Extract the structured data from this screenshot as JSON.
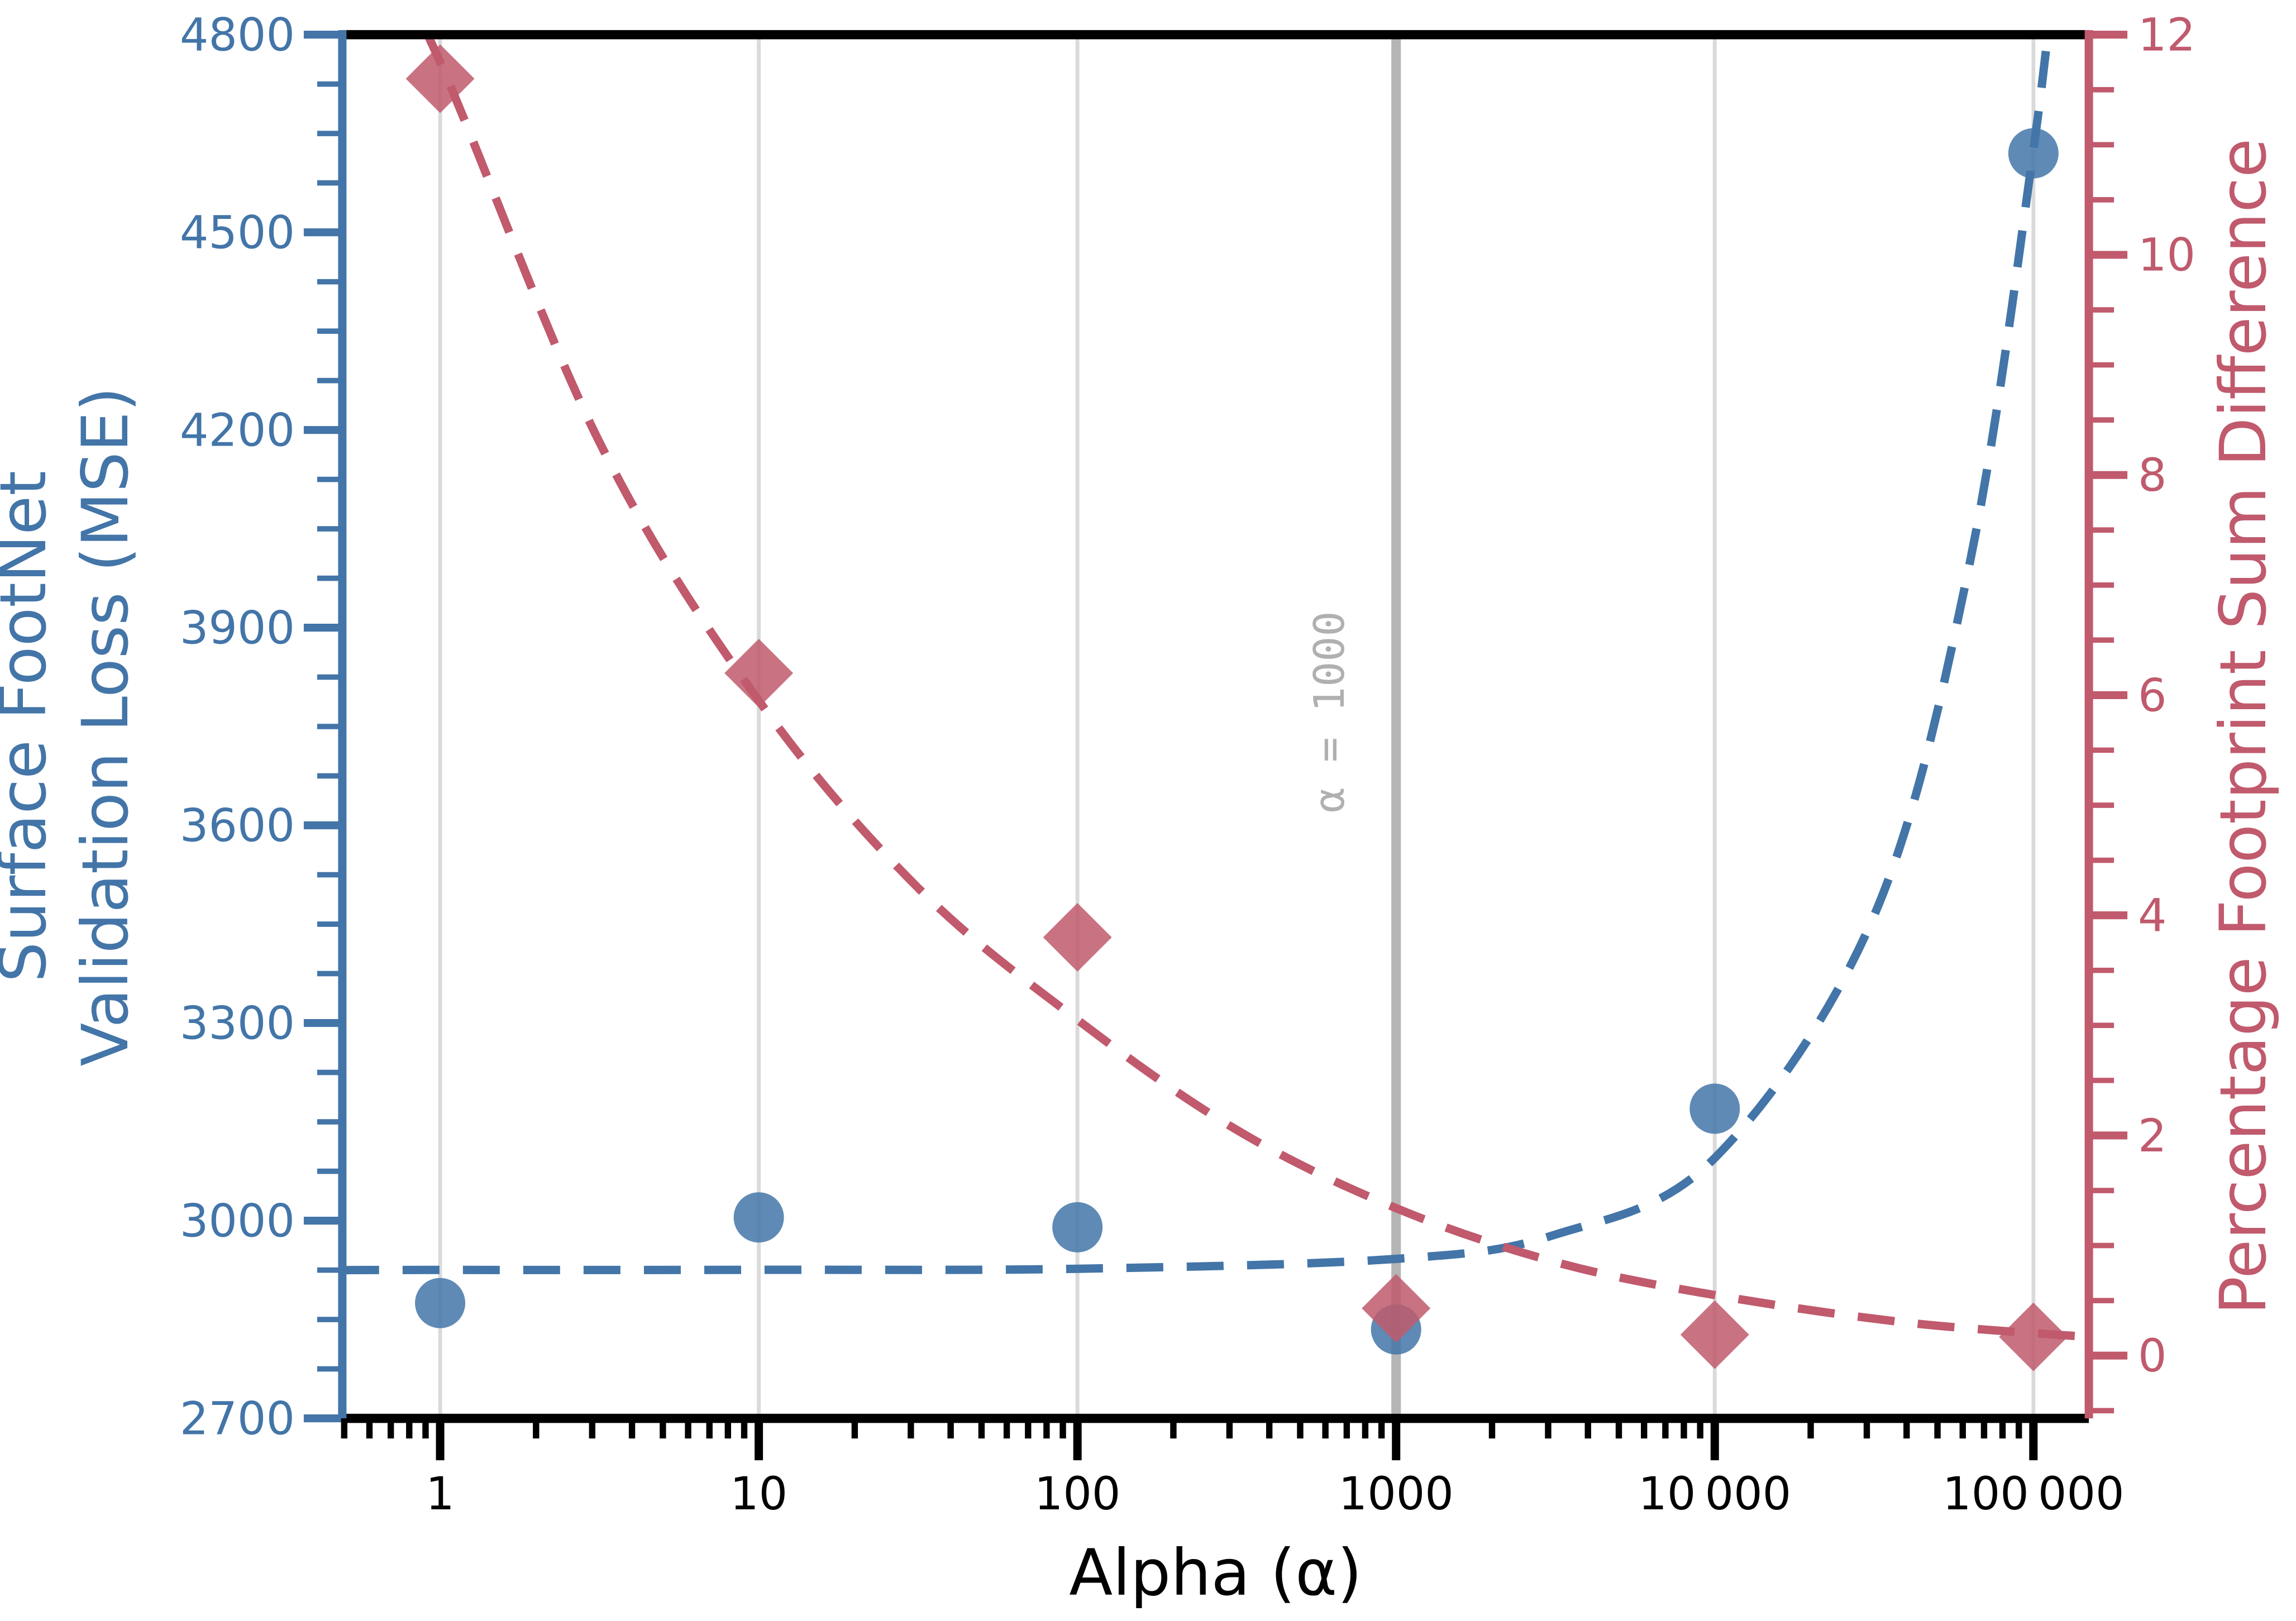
{
  "chart_data": {
    "type": "scatter",
    "title": "",
    "xlabel": "Alpha (α)",
    "x_axis": {
      "scale": "log",
      "log_range": [
        -0.307,
        5.174
      ],
      "major_ticks": [
        {
          "v": 1,
          "label": "1"
        },
        {
          "v": 10,
          "label": "10"
        },
        {
          "v": 100,
          "label": "100"
        },
        {
          "v": 1000,
          "label": "1000"
        },
        {
          "v": 10000,
          "label": "10 000"
        },
        {
          "v": 100000,
          "label": "100 000"
        }
      ],
      "gridline_decades": [
        1,
        10,
        100,
        1000,
        10000,
        100000
      ]
    },
    "left_axis": {
      "label_line1": "Surface FootNet",
      "label_line2": "Validation Loss (MSE)",
      "range": [
        2700,
        4800
      ],
      "major_step": 300,
      "minor_step": 75,
      "tick_labels": [
        "2700",
        "3000",
        "3300",
        "3600",
        "3900",
        "4200",
        "4500",
        "4800"
      ]
    },
    "right_axis": {
      "label": "Percentage Footprint Sum Difference",
      "range": [
        -0.57,
        12
      ],
      "major_step": 2,
      "minor_step": 0.5,
      "tick_labels": [
        "0",
        "2",
        "4",
        "6",
        "8",
        "10",
        "12"
      ]
    },
    "series": [
      {
        "name": "surface-footnet-validation-loss",
        "axis": "left",
        "marker": "circle",
        "points": [
          [
            1,
            2875
          ],
          [
            10,
            3005
          ],
          [
            100,
            2990
          ],
          [
            1000,
            2835
          ],
          [
            10000,
            3170
          ],
          [
            100000,
            4620
          ]
        ]
      },
      {
        "name": "percentage-footprint-sum-difference",
        "axis": "right",
        "marker": "diamond",
        "points": [
          [
            1,
            11.6
          ],
          [
            10,
            6.2
          ],
          [
            100,
            3.8
          ],
          [
            1000,
            0.43
          ],
          [
            10000,
            0.19
          ],
          [
            100000,
            0.17
          ]
        ]
      }
    ],
    "fits": [
      {
        "name": "loss-fit",
        "axis": "left",
        "samples": [
          [
            0.493,
            2925
          ],
          [
            1,
            2925.2
          ],
          [
            10,
            2925.4
          ],
          [
            100,
            2927
          ],
          [
            1000,
            2942
          ],
          [
            3162,
            2979
          ],
          [
            10000,
            3095
          ],
          [
            31623,
            3463
          ],
          [
            63096,
            3998
          ],
          [
            100000,
            4625
          ],
          [
            120000,
            4965
          ]
        ]
      },
      {
        "name": "pct-difference-fit",
        "axis": "right",
        "samples": [
          [
            0.6,
            13
          ],
          [
            1,
            11.75
          ],
          [
            3.16,
            8.3
          ],
          [
            10,
            5.95
          ],
          [
            31.6,
            4.25
          ],
          [
            100,
            3.05
          ],
          [
            316,
            2.05
          ],
          [
            1000,
            1.34
          ],
          [
            3162,
            0.85
          ],
          [
            10000,
            0.55
          ],
          [
            40000,
            0.3
          ],
          [
            148000,
            0.17
          ]
        ]
      }
    ],
    "annotation": {
      "text": "α = 1000",
      "x": 1000
    },
    "colors": {
      "blue": "#4375a8",
      "red": "#c05a6c",
      "gridline": "#dadada",
      "alpha_line": "#b5b5b5",
      "annotation": "#b0b0b0",
      "axis_black": "#000000",
      "background": "#ffffff"
    }
  }
}
